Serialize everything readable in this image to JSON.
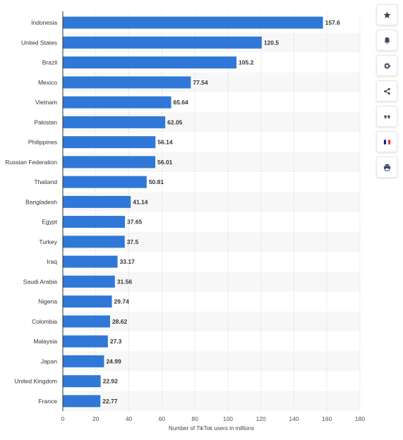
{
  "chart_data": {
    "type": "bar",
    "orientation": "horizontal",
    "xlabel": "Number of TikTok users in millions",
    "xlim": [
      0,
      180
    ],
    "x_ticks": [
      0,
      20,
      40,
      60,
      80,
      100,
      120,
      140,
      160,
      180
    ],
    "grid": "vertical",
    "bar_color": "#2f78d8",
    "categories": [
      "Indonesia",
      "United States",
      "Brazil",
      "Mexico",
      "Vietnam",
      "Pakistan",
      "Philippines",
      "Russian Federation",
      "Thailand",
      "Bangladesh",
      "Egypt",
      "Turkey",
      "Iraq",
      "Saudi Arabia",
      "Nigeria",
      "Colombia",
      "Malaysia",
      "Japan",
      "United Kingdom",
      "France"
    ],
    "values": [
      157.6,
      120.5,
      105.2,
      77.54,
      65.64,
      62.05,
      56.14,
      56.01,
      50.81,
      41.14,
      37.65,
      37.5,
      33.17,
      31.56,
      29.74,
      28.62,
      27.3,
      24.99,
      22.92,
      22.77
    ],
    "value_labels": [
      "157.6",
      "120.5",
      "105.2",
      "77.54",
      "65.64",
      "62.05",
      "56.14",
      "56.01",
      "50.81",
      "41.14",
      "37.65",
      "37.5",
      "33.17",
      "31.56",
      "29.74",
      "28.62",
      "27.3",
      "24.99",
      "22.92",
      "22.77"
    ]
  },
  "toolbar": {
    "buttons": [
      "star-icon",
      "bell-icon",
      "gear-icon",
      "share-icon",
      "quote-icon",
      "flag-icon",
      "print-icon"
    ],
    "flag_colors": [
      "#002395",
      "#ffffff",
      "#ed2939"
    ],
    "icon_color": "#3a4a5c"
  }
}
